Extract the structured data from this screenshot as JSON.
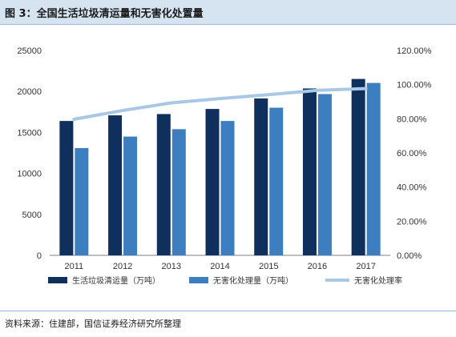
{
  "header": {
    "title": "图 3：全国生活垃圾清运量和无害化处置量"
  },
  "footer": {
    "source": "资料来源：住建部，国信证券经济研究所整理"
  },
  "colors": {
    "series1": "#0f2f5c",
    "series2": "#3c7ec0",
    "series3": "#a8c8e6",
    "title_bar": "#d6e4f2"
  },
  "chart_data": {
    "type": "bar",
    "categories": [
      "2011",
      "2012",
      "2013",
      "2014",
      "2015",
      "2016",
      "2017"
    ],
    "series": [
      {
        "name": "生活垃圾清运量（万吨）",
        "type": "bar",
        "axis": "left",
        "values": [
          16395,
          17081,
          17239,
          17860,
          19142,
          20362,
          21521
        ]
      },
      {
        "name": "无害化处理量（万吨）",
        "type": "bar",
        "axis": "left",
        "values": [
          13090,
          14490,
          15394,
          16394,
          18013,
          19674,
          21034
        ]
      },
      {
        "name": "无害化处理率",
        "type": "line",
        "axis": "right",
        "values": [
          79.7,
          84.8,
          89.3,
          91.8,
          94.1,
          96.6,
          97.7
        ]
      }
    ],
    "y_left": {
      "min": 0,
      "max": 25000,
      "ticks": [
        "0",
        "5000",
        "10000",
        "15000",
        "20000",
        "25000"
      ]
    },
    "y_right": {
      "min": 0,
      "max": 120,
      "ticks": [
        "0.00%",
        "20.00%",
        "40.00%",
        "60.00%",
        "80.00%",
        "100.00%",
        "120.00%"
      ]
    },
    "grid": false,
    "legend_position": "bottom"
  }
}
